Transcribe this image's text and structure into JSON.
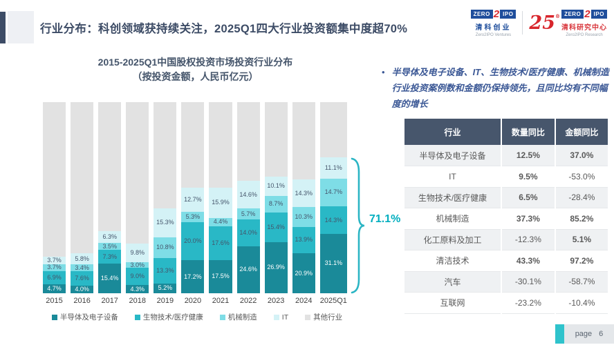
{
  "page": {
    "title": "行业分布：科创领域获持续关注，2025Q1四大行业投资额集中度超70%",
    "footer": {
      "page_label": "page",
      "page_number": "6"
    }
  },
  "logos": {
    "ventures": {
      "zero": "ZERO",
      "two": "2",
      "ipo": "IPO",
      "cn": "清科创业",
      "en": "Zero2IPO Ventures"
    },
    "anniversary": {
      "number": "25",
      "reg": "®"
    },
    "research": {
      "zero": "ZERO",
      "two": "2",
      "ipo": "IPO",
      "cn": "清科研究中心",
      "en": "Zero2IPO Research"
    }
  },
  "chart": {
    "title_line1": "2015-2025Q1中国股权投资市场投资行业分布",
    "title_line2": "（按投资金额，人民币亿元）",
    "highlight_value": "71.1%",
    "highlight_color": "#00aebf"
  },
  "chart_data": {
    "type": "bar",
    "stacked": true,
    "normalized_percent": true,
    "unit": "%",
    "title": "2015-2025Q1中国股权投资市场投资行业分布（按投资金额，人民币亿元）",
    "categories": [
      "2015",
      "2016",
      "2017",
      "2018",
      "2019",
      "2020",
      "2021",
      "2022",
      "2023",
      "2024",
      "2025Q1"
    ],
    "series": [
      {
        "name": "半导体及电子设备",
        "color": "#1a8a99",
        "label_color": "#ffffff",
        "show_labels": true,
        "values": [
          4.7,
          4.0,
          15.4,
          4.3,
          5.2,
          17.2,
          17.5,
          24.6,
          26.9,
          20.9,
          31.1
        ]
      },
      {
        "name": "生物技术/医疗健康",
        "color": "#29b8c6",
        "label_color": "#44546a",
        "show_labels": true,
        "values": [
          6.9,
          7.6,
          7.3,
          9.0,
          13.3,
          20.0,
          17.6,
          14.0,
          15.4,
          13.9,
          14.3
        ]
      },
      {
        "name": "机械制造",
        "color": "#7edde6",
        "label_color": "#44546a",
        "show_labels": true,
        "values": [
          3.7,
          3.4,
          3.5,
          3.0,
          10.8,
          5.3,
          4.4,
          5.7,
          8.7,
          10.3,
          14.7
        ]
      },
      {
        "name": "IT",
        "color": "#d4f2f6",
        "label_color": "#44546a",
        "show_labels": true,
        "values": [
          3.7,
          5.8,
          6.3,
          9.8,
          15.3,
          12.7,
          15.9,
          14.6,
          10.1,
          14.3,
          11.1
        ]
      },
      {
        "name": "其他行业",
        "color": "#e2e2e2",
        "label_color": "#44546a",
        "show_labels": false,
        "values": [
          81.0,
          79.2,
          67.5,
          73.9,
          55.4,
          44.8,
          44.6,
          41.1,
          38.9,
          40.6,
          28.8
        ]
      }
    ],
    "annotation": {
      "text": "71.1%",
      "applies_to": "2025Q1",
      "meaning": "top-4 industries share of 2025Q1 investment amount"
    },
    "legend_position": "bottom",
    "ylim": [
      0,
      100
    ]
  },
  "insight": {
    "bullet": "•",
    "text": "半导体及电子设备、IT、生物技术/医疗健康、机械制造行业投资案例数和金额仍保持领先，且同比均有不同幅度的增长"
  },
  "table": {
    "headers": [
      "行业",
      "数量同比",
      "金额同比"
    ],
    "rows": [
      {
        "industry": "半导体及电子设备",
        "count_yoy": "12.5%",
        "amount_yoy": "37.0%"
      },
      {
        "industry": "IT",
        "count_yoy": "9.5%",
        "amount_yoy": "-53.0%"
      },
      {
        "industry": "生物技术/医疗健康",
        "count_yoy": "6.5%",
        "amount_yoy": "-28.4%"
      },
      {
        "industry": "机械制造",
        "count_yoy": "37.3%",
        "amount_yoy": "85.2%"
      },
      {
        "industry": "化工原料及加工",
        "count_yoy": "-12.3%",
        "amount_yoy": "5.1%"
      },
      {
        "industry": "清洁技术",
        "count_yoy": "43.3%",
        "amount_yoy": "97.2%"
      },
      {
        "industry": "汽车",
        "count_yoy": "-30.1%",
        "amount_yoy": "-58.7%"
      },
      {
        "industry": "互联网",
        "count_yoy": "-23.2%",
        "amount_yoy": "-10.4%"
      }
    ],
    "value_colors": {
      "positive": "#c0282e",
      "negative": "#808080"
    }
  }
}
